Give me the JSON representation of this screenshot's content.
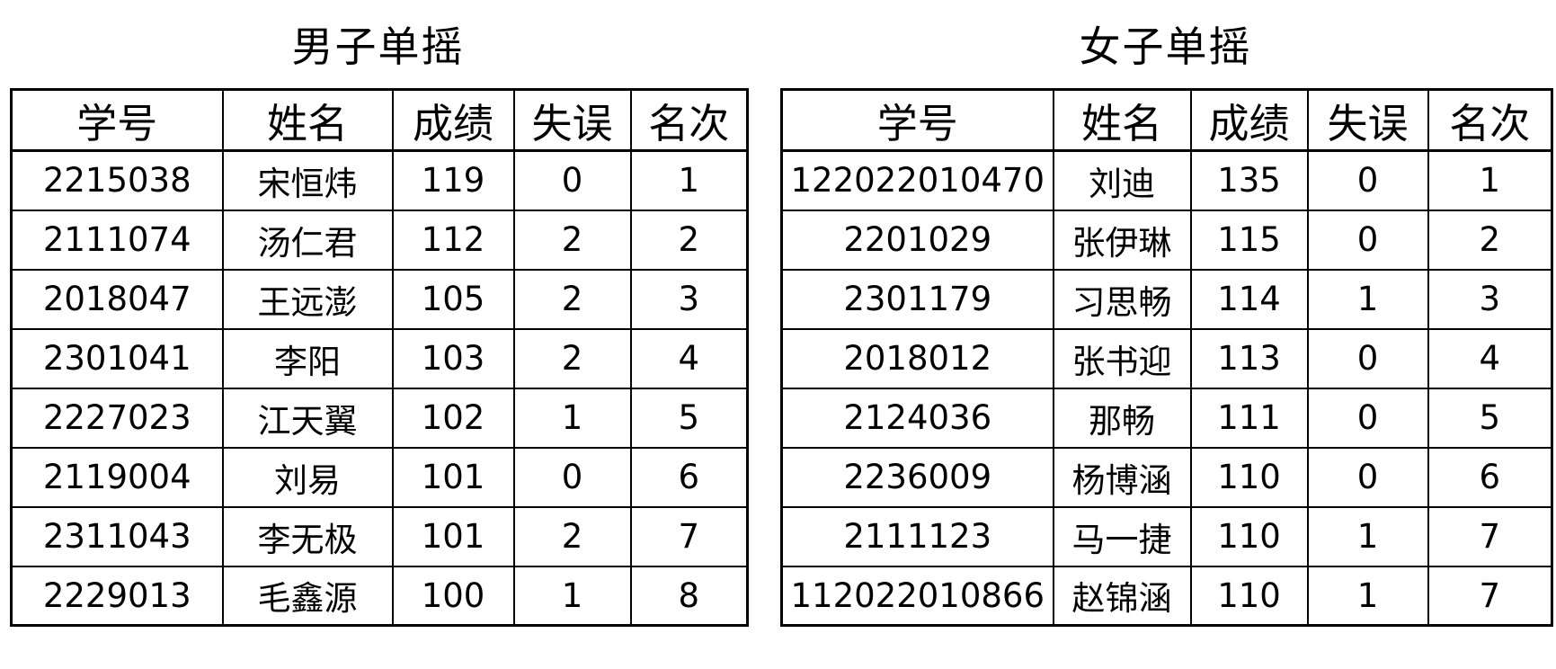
{
  "page": {
    "background_color": "#ffffff",
    "border_color": "#000000",
    "text_color": "#000000"
  },
  "tables": [
    {
      "title": "男子单摇",
      "headers": [
        "学号",
        "姓名",
        "成绩",
        "失误",
        "名次"
      ],
      "rows": [
        [
          "2215038",
          "宋恒炜",
          "119",
          "0",
          "1"
        ],
        [
          "2111074",
          "汤仁君",
          "112",
          "2",
          "2"
        ],
        [
          "2018047",
          "王远澎",
          "105",
          "2",
          "3"
        ],
        [
          "2301041",
          "李阳",
          "103",
          "2",
          "4"
        ],
        [
          "2227023",
          "江天翼",
          "102",
          "1",
          "5"
        ],
        [
          "2119004",
          "刘易",
          "101",
          "0",
          "6"
        ],
        [
          "2311043",
          "李无极",
          "101",
          "2",
          "7"
        ],
        [
          "2229013",
          "毛鑫源",
          "100",
          "1",
          "8"
        ]
      ]
    },
    {
      "title": "女子单摇",
      "headers": [
        "学号",
        "姓名",
        "成绩",
        "失误",
        "名次"
      ],
      "rows": [
        [
          "122022010470",
          "刘迪",
          "135",
          "0",
          "1"
        ],
        [
          "2201029",
          "张伊琳",
          "115",
          "0",
          "2"
        ],
        [
          "2301179",
          "习思畅",
          "114",
          "1",
          "3"
        ],
        [
          "2018012",
          "张书迎",
          "113",
          "0",
          "4"
        ],
        [
          "2124036",
          "那畅",
          "111",
          "0",
          "5"
        ],
        [
          "2236009",
          "杨博涵",
          "110",
          "0",
          "6"
        ],
        [
          "2111123",
          "马一捷",
          "110",
          "1",
          "7"
        ],
        [
          "112022010866",
          "赵锦涵",
          "110",
          "1",
          "7"
        ]
      ]
    }
  ]
}
